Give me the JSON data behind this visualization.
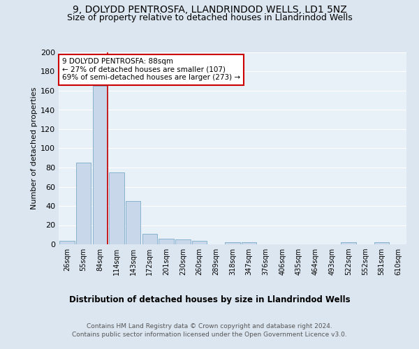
{
  "title1": "9, DOLYDD PENTROSFA, LLANDRINDOD WELLS, LD1 5NZ",
  "title2": "Size of property relative to detached houses in Llandrindod Wells",
  "xlabel": "Distribution of detached houses by size in Llandrindod Wells",
  "ylabel": "Number of detached properties",
  "footer1": "Contains HM Land Registry data © Crown copyright and database right 2024.",
  "footer2": "Contains public sector information licensed under the Open Government Licence v3.0.",
  "bar_labels": [
    "26sqm",
    "55sqm",
    "84sqm",
    "114sqm",
    "143sqm",
    "172sqm",
    "201sqm",
    "230sqm",
    "260sqm",
    "289sqm",
    "318sqm",
    "347sqm",
    "376sqm",
    "406sqm",
    "435sqm",
    "464sqm",
    "493sqm",
    "522sqm",
    "552sqm",
    "581sqm",
    "610sqm"
  ],
  "bar_values": [
    4,
    85,
    165,
    75,
    45,
    11,
    6,
    5,
    4,
    0,
    2,
    2,
    0,
    0,
    0,
    0,
    0,
    2,
    0,
    2,
    0
  ],
  "bar_color": "#c8d8ea",
  "bar_edge_color": "#7aaac8",
  "vline_x_index": 2,
  "vline_color": "#cc0000",
  "annotation_text": "9 DOLYDD PENTROSFA: 88sqm\n← 27% of detached houses are smaller (107)\n69% of semi-detached houses are larger (273) →",
  "annotation_box_color": "#cc0000",
  "annotation_text_color": "black",
  "ylim": [
    0,
    200
  ],
  "yticks": [
    0,
    20,
    40,
    60,
    80,
    100,
    120,
    140,
    160,
    180,
    200
  ],
  "bg_color": "#dce6f0",
  "plot_bg_color": "#e8f0f8",
  "title_fontsize": 10,
  "subtitle_fontsize": 9
}
